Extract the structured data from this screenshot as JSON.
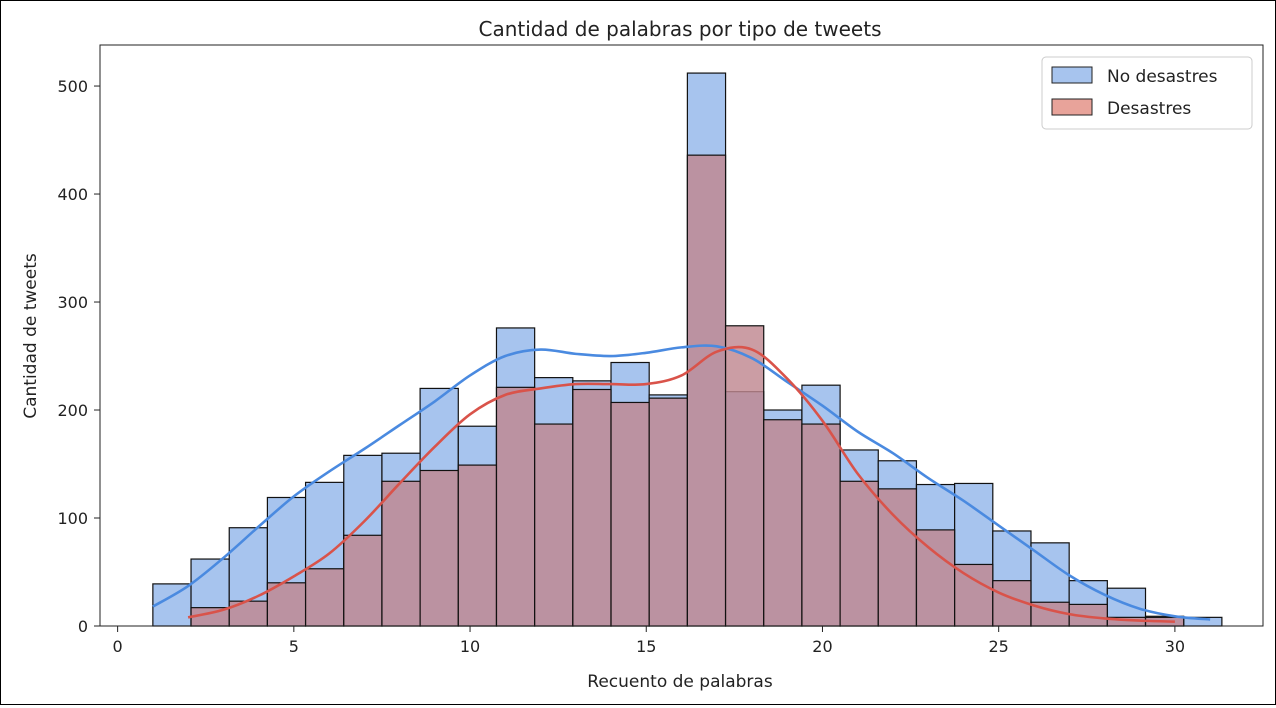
{
  "chart_data": {
    "type": "bar",
    "title": "Cantidad de palabras por tipo de tweets",
    "xlabel": "Recuento de palabras",
    "ylabel": "Cantidad de tweets",
    "xlim": [
      -0.5,
      32.5
    ],
    "ylim": [
      0,
      538
    ],
    "xticks": [
      0,
      5,
      10,
      15,
      20,
      25,
      30
    ],
    "yticks": [
      0,
      100,
      200,
      300,
      400,
      500
    ],
    "grid": false,
    "legend": "top-right",
    "bin_width": 1.0833,
    "series": [
      {
        "name": "No desastres",
        "color": "#4a8ae0",
        "fill": "#a7c4ee",
        "bins": [
          {
            "start": 1.0,
            "value": 39
          },
          {
            "start": 2.083,
            "value": 62
          },
          {
            "start": 3.167,
            "value": 91
          },
          {
            "start": 4.25,
            "value": 119
          },
          {
            "start": 5.333,
            "value": 133
          },
          {
            "start": 6.417,
            "value": 158
          },
          {
            "start": 7.5,
            "value": 160
          },
          {
            "start": 8.583,
            "value": 220
          },
          {
            "start": 9.667,
            "value": 185
          },
          {
            "start": 10.75,
            "value": 276
          },
          {
            "start": 11.833,
            "value": 230
          },
          {
            "start": 12.917,
            "value": 227
          },
          {
            "start": 14.0,
            "value": 244
          },
          {
            "start": 15.083,
            "value": 214
          },
          {
            "start": 16.167,
            "value": 512
          },
          {
            "start": 17.25,
            "value": 217
          },
          {
            "start": 18.333,
            "value": 200
          },
          {
            "start": 19.417,
            "value": 223
          },
          {
            "start": 20.5,
            "value": 163
          },
          {
            "start": 21.583,
            "value": 153
          },
          {
            "start": 22.667,
            "value": 131
          },
          {
            "start": 23.75,
            "value": 132
          },
          {
            "start": 24.833,
            "value": 88
          },
          {
            "start": 25.917,
            "value": 77
          },
          {
            "start": 27.0,
            "value": 42
          },
          {
            "start": 28.083,
            "value": 35
          },
          {
            "start": 29.167,
            "value": 9
          },
          {
            "start": 30.25,
            "value": 8
          }
        ],
        "kde_x": [
          1,
          2,
          3,
          4,
          5,
          6,
          7,
          8,
          9,
          10,
          11,
          12,
          13,
          14,
          15,
          16,
          17,
          18,
          19,
          20,
          21,
          22,
          23,
          24,
          25,
          26,
          27,
          28,
          29,
          30,
          31
        ],
        "kde_y": [
          18,
          37,
          63,
          92,
          120,
          143,
          164,
          186,
          208,
          232,
          250,
          256,
          252,
          250,
          253,
          258,
          259,
          248,
          226,
          204,
          180,
          160,
          137,
          116,
          93,
          70,
          47,
          29,
          16,
          9,
          6
        ]
      },
      {
        "name": "Desastres",
        "color": "#d9534a",
        "fill": "#c08890",
        "bins": [
          {
            "start": 2.083,
            "value": 17
          },
          {
            "start": 3.167,
            "value": 23
          },
          {
            "start": 4.25,
            "value": 40
          },
          {
            "start": 5.333,
            "value": 53
          },
          {
            "start": 6.417,
            "value": 84
          },
          {
            "start": 7.5,
            "value": 134
          },
          {
            "start": 8.583,
            "value": 144
          },
          {
            "start": 9.667,
            "value": 149
          },
          {
            "start": 10.75,
            "value": 221
          },
          {
            "start": 11.833,
            "value": 187
          },
          {
            "start": 12.917,
            "value": 219
          },
          {
            "start": 14.0,
            "value": 207
          },
          {
            "start": 15.083,
            "value": 211
          },
          {
            "start": 16.167,
            "value": 436
          },
          {
            "start": 17.25,
            "value": 278
          },
          {
            "start": 18.333,
            "value": 191
          },
          {
            "start": 19.417,
            "value": 187
          },
          {
            "start": 20.5,
            "value": 134
          },
          {
            "start": 21.583,
            "value": 127
          },
          {
            "start": 22.667,
            "value": 89
          },
          {
            "start": 23.75,
            "value": 57
          },
          {
            "start": 24.833,
            "value": 42
          },
          {
            "start": 25.917,
            "value": 22
          },
          {
            "start": 27.0,
            "value": 20
          },
          {
            "start": 28.083,
            "value": 8
          },
          {
            "start": 29.167,
            "value": 8
          }
        ],
        "kde_x": [
          2,
          3,
          4,
          5,
          6,
          7,
          8,
          9,
          10,
          11,
          12,
          13,
          14,
          15,
          16,
          17,
          18,
          19,
          20,
          21,
          22,
          23,
          24,
          25,
          26,
          27,
          28,
          29,
          30
        ],
        "kde_y": [
          8,
          15,
          28,
          46,
          67,
          97,
          132,
          166,
          196,
          214,
          220,
          224,
          224,
          224,
          232,
          254,
          256,
          229,
          190,
          141,
          103,
          73,
          49,
          31,
          19,
          11,
          7,
          5,
          4
        ]
      }
    ]
  }
}
